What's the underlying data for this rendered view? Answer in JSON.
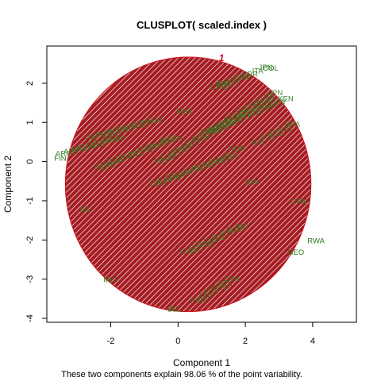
{
  "chart_data": {
    "type": "scatter",
    "title": "CLUSPLOT( scaled.index )",
    "xlabel": "Component 1",
    "ylabel": "Component 2",
    "caption": "These two components explain 98.06 % of the point variability.",
    "xlim": [
      -3.9,
      5.3
    ],
    "ylim": [
      -4.1,
      2.95
    ],
    "xticks": [
      -2,
      0,
      2,
      4
    ],
    "yticks": [
      -4,
      -3,
      -2,
      -1,
      0,
      1,
      2
    ],
    "cluster": {
      "label": "1",
      "center": [
        0.3,
        -0.58
      ],
      "rx": 3.65,
      "ry": 3.25,
      "fill": "#a51c22",
      "hatch": "#ffffff",
      "border": "#d0101e"
    },
    "colors": {
      "point_label": "#2f7a1f",
      "cluster_id": "#d0101e"
    },
    "points": [
      {
        "label": "COL",
        "x": 2.75,
        "y": 2.4
      },
      {
        "label": "PHL",
        "x": 1.35,
        "y": 2.0
      },
      {
        "label": "MEX",
        "x": 0.2,
        "y": 1.3
      },
      {
        "label": "BEL",
        "x": -0.1,
        "y": -3.75
      },
      {
        "label": "MLT",
        "x": -2.0,
        "y": -3.0
      },
      {
        "label": "ISL",
        "x": -2.75,
        "y": -1.2
      },
      {
        "label": "GEO",
        "x": 3.5,
        "y": -2.3
      },
      {
        "label": "RWA",
        "x": 4.1,
        "y": -2.0
      },
      {
        "label": "CHN",
        "x": 3.6,
        "y": -1.0
      },
      {
        "label": "IDN",
        "x": 2.2,
        "y": -0.5
      },
      {
        "label": "NOR",
        "x": 1.75,
        "y": 0.35
      },
      {
        "label": "FIN",
        "x": -3.5,
        "y": 0.1
      }
    ]
  }
}
